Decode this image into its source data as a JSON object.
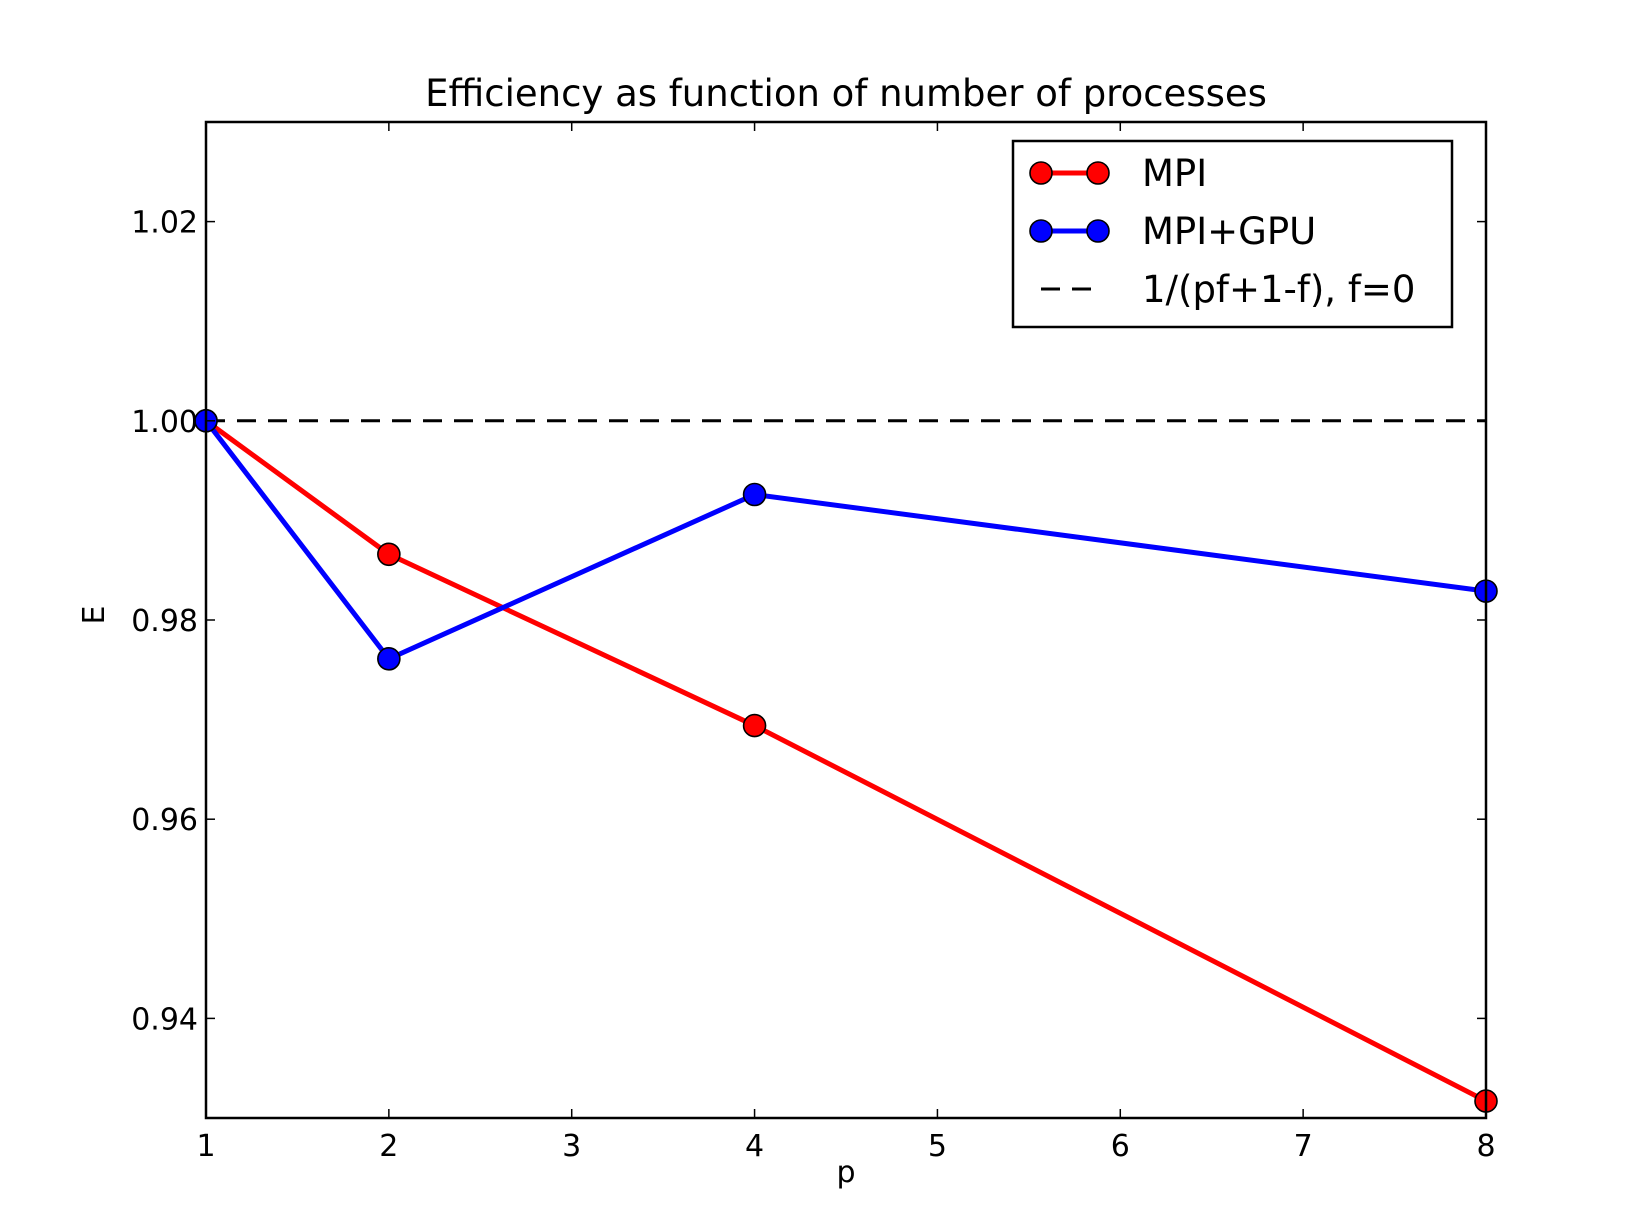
{
  "chart_data": {
    "type": "line",
    "title": "Efficiency as function of number of processes",
    "xlabel": "p",
    "ylabel": "E",
    "xlim": [
      1,
      8
    ],
    "ylim": [
      0.93,
      1.03
    ],
    "xticks": [
      1,
      2,
      3,
      4,
      5,
      6,
      7,
      8
    ],
    "xtick_labels": [
      "1",
      "2",
      "3",
      "4",
      "5",
      "6",
      "7",
      "8"
    ],
    "yticks": [
      0.94,
      0.96,
      0.98,
      1.0,
      1.02
    ],
    "ytick_labels": [
      "0.94",
      "0.96",
      "0.98",
      "1.00",
      "1.02"
    ],
    "grid": false,
    "legend_position": "top-right",
    "series": [
      {
        "name": "MPI",
        "color": "#ff0000",
        "style": "solid",
        "marker": "circle",
        "x": [
          1,
          2,
          4,
          8
        ],
        "y": [
          1.0,
          0.9866,
          0.9694,
          0.9317
        ]
      },
      {
        "name": "MPI+GPU",
        "color": "#0000ff",
        "style": "solid",
        "marker": "circle",
        "x": [
          1,
          2,
          4,
          8
        ],
        "y": [
          1.0,
          0.9761,
          0.9926,
          0.9829
        ]
      },
      {
        "name": "1/(pf+1-f), f=0",
        "color": "#000000",
        "style": "dashed",
        "marker": "none",
        "x": [
          1,
          8
        ],
        "y": [
          1.0,
          1.0
        ]
      }
    ]
  }
}
